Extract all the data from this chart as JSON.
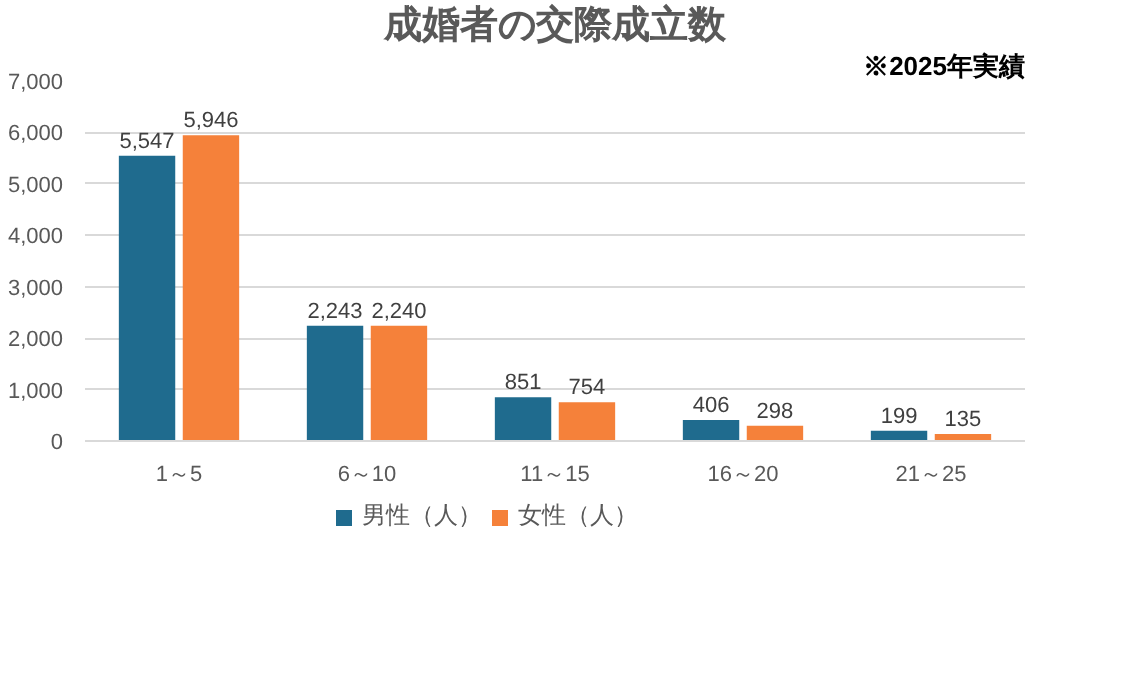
{
  "chart_data": {
    "type": "bar",
    "title": "成婚者の交際成立数",
    "annotations": [
      "※2025年実績"
    ],
    "categories": [
      "1～5",
      "6～10",
      "11～15",
      "16～20",
      "21～25"
    ],
    "series": [
      {
        "name": "男性（人）",
        "color": "#1f6b8e",
        "values": [
          5547,
          2243,
          851,
          406,
          199
        ],
        "value_labels": [
          "5,547",
          "2,243",
          "851",
          "406",
          "199"
        ]
      },
      {
        "name": "女性（人）",
        "color": "#f5813a",
        "values": [
          5946,
          2240,
          754,
          298,
          135
        ],
        "value_labels": [
          "5,946",
          "2,240",
          "754",
          "298",
          "135"
        ]
      }
    ],
    "ylim": [
      0,
      7000
    ],
    "yticks": [
      {
        "value": 0,
        "label": "0"
      },
      {
        "value": 1000,
        "label": "1,000"
      },
      {
        "value": 2000,
        "label": "2,000"
      },
      {
        "value": 3000,
        "label": "3,000"
      },
      {
        "value": 4000,
        "label": "4,000"
      },
      {
        "value": 5000,
        "label": "5,000"
      },
      {
        "value": 6000,
        "label": "6,000"
      },
      {
        "value": 7000,
        "label": "7,000"
      }
    ],
    "grid": "y",
    "legend": "bottom",
    "data_labels": true
  }
}
